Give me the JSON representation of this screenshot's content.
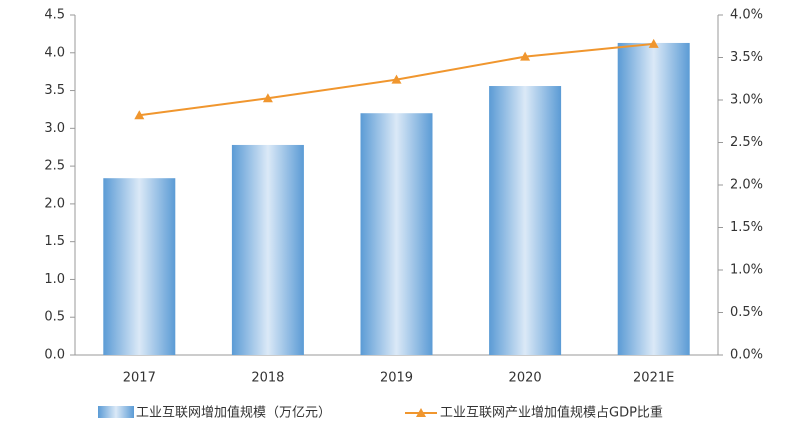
{
  "chart_data": {
    "type": "bar-line",
    "categories": [
      "2017",
      "2018",
      "2019",
      "2020",
      "2021E"
    ],
    "series": [
      {
        "name": "工业互联网增加值规模（万亿元）",
        "type": "bar",
        "color": "#5b9bd5",
        "values": [
          2.34,
          2.78,
          3.2,
          3.56,
          4.13
        ]
      },
      {
        "name": "工业互联网产业增加值规模占GDP比重",
        "type": "line",
        "axis": "y2",
        "color": "#f0962e",
        "values": [
          2.82,
          3.02,
          3.24,
          3.51,
          3.66
        ]
      }
    ],
    "ylim": [
      0,
      4.5
    ],
    "yticks": [
      {
        "value": 0,
        "label": "0.0"
      },
      0.5,
      {
        "value": 1,
        "label": "1.0"
      },
      1.5,
      {
        "value": 2,
        "label": "2.0"
      },
      2.5,
      {
        "value": 3,
        "label": "3.0"
      },
      3.5,
      {
        "value": 4,
        "label": "4.0"
      },
      4.5
    ],
    "y2lim": [
      0,
      4
    ],
    "y2ticks": [
      {
        "value": 0,
        "label": "0.0%"
      },
      {
        "value": 0.5,
        "label": "0.5%"
      },
      {
        "value": 1,
        "label": "1.0%"
      },
      {
        "value": 1.5,
        "label": "1.5%"
      },
      {
        "value": 2,
        "label": "2.0%"
      },
      {
        "value": 2.5,
        "label": "2.5%"
      },
      {
        "value": 3,
        "label": "3.0%"
      },
      {
        "value": 3.5,
        "label": "3.5%"
      },
      {
        "value": 4,
        "label": "4.0%"
      }
    ],
    "legend": "bottom"
  }
}
